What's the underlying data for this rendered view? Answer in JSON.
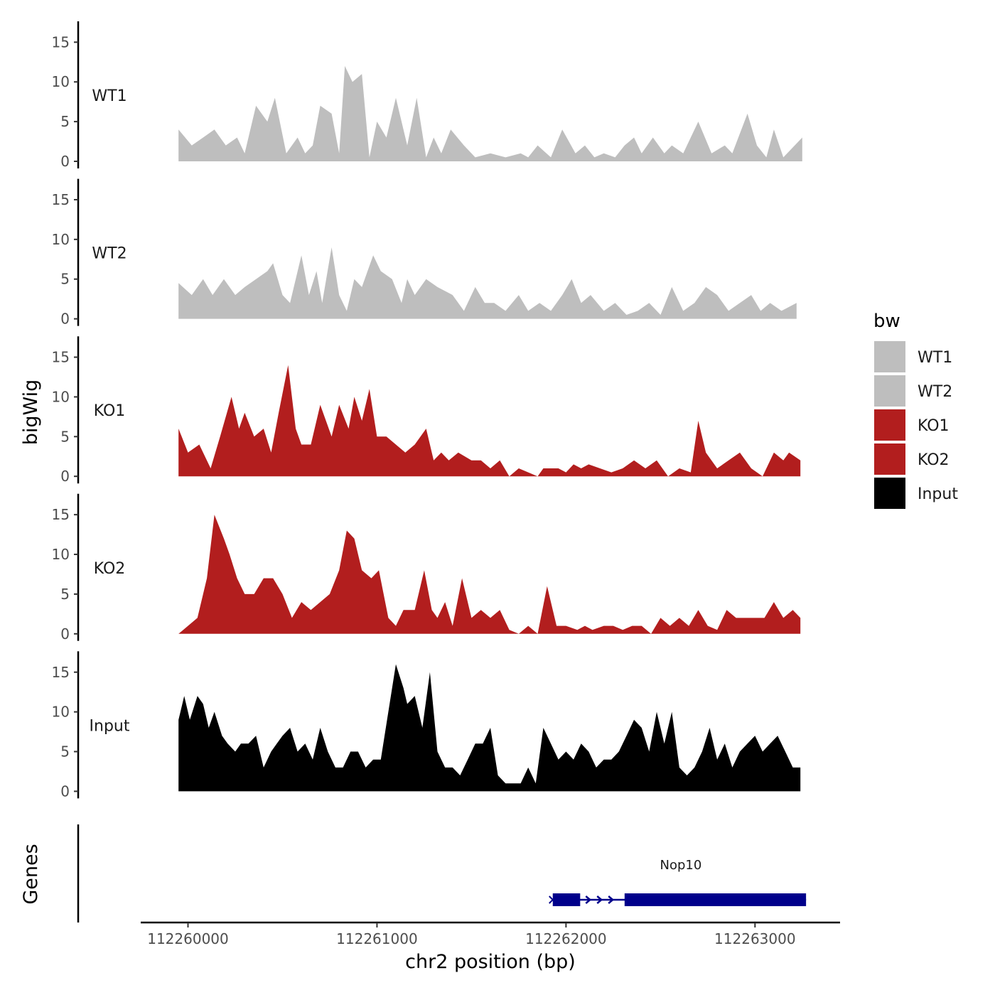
{
  "chart_data": {
    "type": "area",
    "title": "",
    "xlabel": "chr2 position (bp)",
    "ylabel": "bigWig",
    "xlim": [
      112259750,
      112263450
    ],
    "ylim": [
      0,
      17
    ],
    "x_ticks": [
      112260000,
      112261000,
      112262000,
      112263000
    ],
    "x_tick_labels": [
      "112260000",
      "112261000",
      "112262000",
      "112263000"
    ],
    "y_ticks": [
      0,
      5,
      10,
      15
    ],
    "y_tick_labels": [
      "0",
      "5",
      "10",
      "15"
    ],
    "legend_title": "bw",
    "legend_position": "right",
    "gene_track_label": "Genes",
    "series": [
      {
        "name": "WT1",
        "color": "#bebebe",
        "x": [
          112259950,
          112260020,
          112260080,
          112260140,
          112260200,
          112260260,
          112260300,
          112260360,
          112260420,
          112260460,
          112260520,
          112260580,
          112260620,
          112260660,
          112260700,
          112260760,
          112260800,
          112260830,
          112260870,
          112260920,
          112260960,
          112261000,
          112261050,
          112261100,
          112261160,
          112261210,
          112261260,
          112261300,
          112261340,
          112261390,
          112261460,
          112261520,
          112261600,
          112261680,
          112261760,
          112261800,
          112261850,
          112261920,
          112261980,
          112262050,
          112262100,
          112262150,
          112262200,
          112262260,
          112262310,
          112262360,
          112262400,
          112262460,
          112262520,
          112262560,
          112262620,
          112262700,
          112262770,
          112262840,
          112262880,
          112262960,
          112263010,
          112263060,
          112263100,
          112263150,
          112263250
        ],
        "values": [
          4,
          2,
          3,
          4,
          2,
          3,
          1,
          7,
          5,
          8,
          1,
          3,
          1,
          2,
          7,
          6,
          1,
          12,
          10,
          11,
          0.5,
          5,
          3,
          8,
          2,
          8,
          0.5,
          3,
          1,
          4,
          2,
          0.5,
          1,
          0.5,
          1,
          0.5,
          2,
          0.5,
          4,
          1,
          2,
          0.5,
          1,
          0.5,
          2,
          3,
          1,
          3,
          1,
          2,
          1,
          5,
          1,
          2,
          1,
          6,
          2,
          0.5,
          4,
          0.5,
          3
        ]
      },
      {
        "name": "WT2",
        "color": "#bebebe",
        "x": [
          112259950,
          112260020,
          112260080,
          112260130,
          112260190,
          112260250,
          112260300,
          112260360,
          112260420,
          112260450,
          112260500,
          112260540,
          112260600,
          112260640,
          112260680,
          112260710,
          112260760,
          112260800,
          112260840,
          112260880,
          112260920,
          112260980,
          112261020,
          112261080,
          112261130,
          112261160,
          112261200,
          112261260,
          112261320,
          112261400,
          112261460,
          112261520,
          112261570,
          112261620,
          112261680,
          112261750,
          112261800,
          112261860,
          112261920,
          112261980,
          112262030,
          112262080,
          112262130,
          112262200,
          112262260,
          112262320,
          112262380,
          112262440,
          112262500,
          112262560,
          112262620,
          112262680,
          112262740,
          112262800,
          112262860,
          112262920,
          112262980,
          112263030,
          112263080,
          112263140,
          112263220
        ],
        "values": [
          4.5,
          3,
          5,
          3,
          5,
          3,
          4,
          5,
          6,
          7,
          3,
          2,
          8,
          3,
          6,
          2,
          9,
          3,
          1,
          5,
          4,
          8,
          6,
          5,
          2,
          5,
          3,
          5,
          4,
          3,
          1,
          4,
          2,
          2,
          1,
          3,
          1,
          2,
          1,
          3,
          5,
          2,
          3,
          1,
          2,
          0.5,
          1,
          2,
          0.5,
          4,
          1,
          2,
          4,
          3,
          1,
          2,
          3,
          1,
          2,
          1,
          2
        ]
      },
      {
        "name": "KO1",
        "color": "#b21e1e",
        "x": [
          112259950,
          112260000,
          112260060,
          112260120,
          112260170,
          112260230,
          112260270,
          112260300,
          112260350,
          112260400,
          112260440,
          112260480,
          112260530,
          112260570,
          112260600,
          112260650,
          112260700,
          112260760,
          112260800,
          112260850,
          112260880,
          112260920,
          112260960,
          112261000,
          112261050,
          112261100,
          112261150,
          112261200,
          112261260,
          112261300,
          112261340,
          112261380,
          112261430,
          112261500,
          112261550,
          112261600,
          112261650,
          112261700,
          112261750,
          112261800,
          112261850,
          112261880,
          112261920,
          112261960,
          112262000,
          112262040,
          112262080,
          112262120,
          112262180,
          112262240,
          112262300,
          112262360,
          112262420,
          112262480,
          112262540,
          112262600,
          112262660,
          112262700,
          112262740,
          112262800,
          112262860,
          112262920,
          112262980,
          112263040,
          112263100,
          112263150,
          112263180,
          112263240
        ],
        "values": [
          6,
          3,
          4,
          1,
          5,
          10,
          6,
          8,
          5,
          6,
          3,
          8,
          14,
          6,
          4,
          4,
          9,
          5,
          9,
          6,
          10,
          7,
          11,
          5,
          5,
          4,
          3,
          4,
          6,
          2,
          3,
          2,
          3,
          2,
          2,
          1,
          2,
          0,
          1,
          0.5,
          0,
          1,
          1,
          1,
          0.5,
          1.5,
          1,
          1.5,
          1,
          0.5,
          1,
          2,
          1,
          2,
          0,
          1,
          0.5,
          7,
          3,
          1,
          2,
          3,
          1,
          0,
          3,
          2,
          3,
          2
        ]
      },
      {
        "name": "KO2",
        "color": "#b21e1e",
        "x": [
          112259950,
          112260000,
          112260050,
          112260100,
          112260140,
          112260190,
          112260220,
          112260260,
          112260300,
          112260350,
          112260400,
          112260450,
          112260500,
          112260550,
          112260600,
          112260650,
          112260700,
          112260750,
          112260800,
          112260840,
          112260880,
          112260920,
          112260970,
          112261010,
          112261060,
          112261100,
          112261140,
          112261170,
          112261200,
          112261250,
          112261290,
          112261320,
          112261360,
          112261400,
          112261450,
          112261500,
          112261550,
          112261600,
          112261650,
          112261700,
          112261750,
          112261800,
          112261850,
          112261900,
          112261950,
          112262000,
          112262060,
          112262100,
          112262140,
          112262200,
          112262250,
          112262300,
          112262350,
          112262400,
          112262450,
          112262500,
          112262550,
          112262600,
          112262650,
          112262700,
          112262750,
          112262800,
          112262850,
          112262900,
          112262950,
          112263000,
          112263050,
          112263100,
          112263150,
          112263200,
          112263240
        ],
        "values": [
          0,
          1,
          2,
          7,
          15,
          12,
          10,
          7,
          5,
          5,
          7,
          7,
          5,
          2,
          4,
          3,
          4,
          5,
          8,
          13,
          12,
          8,
          7,
          8,
          2,
          1,
          3,
          3,
          3,
          8,
          3,
          2,
          4,
          1,
          7,
          2,
          3,
          2,
          3,
          0.5,
          0,
          1,
          0,
          6,
          1,
          1,
          0.5,
          1,
          0.5,
          1,
          1,
          0.5,
          1,
          1,
          0,
          2,
          1,
          2,
          1,
          3,
          1,
          0.5,
          3,
          2,
          2,
          2,
          2,
          4,
          2,
          3,
          2
        ]
      },
      {
        "name": "Input",
        "color": "#000000",
        "x": [
          112259950,
          112259980,
          112260010,
          112260050,
          112260080,
          112260110,
          112260140,
          112260180,
          112260210,
          112260250,
          112260280,
          112260320,
          112260360,
          112260400,
          112260440,
          112260470,
          112260500,
          112260540,
          112260580,
          112260620,
          112260660,
          112260700,
          112260740,
          112260780,
          112260820,
          112260860,
          112260900,
          112260940,
          112260980,
          112261020,
          112261060,
          112261100,
          112261140,
          112261160,
          112261200,
          112261240,
          112261280,
          112261320,
          112261360,
          112261400,
          112261440,
          112261480,
          112261520,
          112261560,
          112261600,
          112261640,
          112261680,
          112261720,
          112261760,
          112261800,
          112261840,
          112261880,
          112261920,
          112261960,
          112262000,
          112262040,
          112262080,
          112262120,
          112262160,
          112262200,
          112262240,
          112262280,
          112262320,
          112262360,
          112262400,
          112262440,
          112262480,
          112262520,
          112262560,
          112262600,
          112262640,
          112262680,
          112262720,
          112262760,
          112262800,
          112262840,
          112262880,
          112262920,
          112262960,
          112263000,
          112263040,
          112263080,
          112263120,
          112263160,
          112263200,
          112263240
        ],
        "values": [
          9,
          12,
          9,
          12,
          11,
          8,
          10,
          7,
          6,
          5,
          6,
          6,
          7,
          3,
          5,
          6,
          7,
          8,
          5,
          6,
          4,
          8,
          5,
          3,
          3,
          5,
          5,
          3,
          4,
          4,
          10,
          16,
          13,
          11,
          12,
          8,
          15,
          5,
          3,
          3,
          2,
          4,
          6,
          6,
          8,
          2,
          1,
          1,
          1,
          3,
          1,
          8,
          6,
          4,
          5,
          4,
          6,
          5,
          3,
          4,
          4,
          5,
          7,
          9,
          8,
          5,
          10,
          6,
          10,
          3,
          2,
          3,
          5,
          8,
          4,
          6,
          3,
          5,
          6,
          7,
          5,
          6,
          7,
          5,
          3,
          3
        ]
      }
    ],
    "genes": [
      {
        "name": "Nop10",
        "strand": "+",
        "start": 112261930,
        "end": 112263270,
        "exons": [
          [
            112261930,
            112262075
          ],
          [
            112262310,
            112263270
          ]
        ],
        "intron_arrows_x": [
          112262120,
          112262180,
          112262240
        ]
      }
    ]
  }
}
